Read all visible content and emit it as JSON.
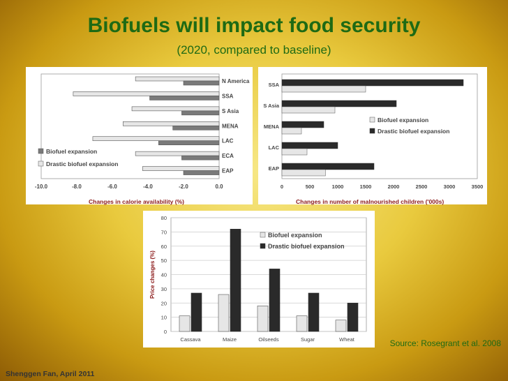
{
  "slide": {
    "title": "Biofuels will impact food security",
    "subtitle": "(2020, compared to baseline)",
    "source": "Source: Rosegrant  et al. 2008",
    "footer": "Shenggen Fan, April 2011"
  },
  "colors": {
    "title": "#1e6a14",
    "chart_title": "#8b1a1a",
    "light_bar": "#e6e6e6",
    "mid_bar": "#7a7a7a",
    "dark_bar": "#2a2a2a"
  },
  "chart_data": [
    {
      "type": "bar",
      "orientation": "horizontal",
      "title": "Changes in calorie availability (%)",
      "categories": [
        "N America",
        "SSA",
        "S Asia",
        "MENA",
        "LAC",
        "ECA",
        "EAP"
      ],
      "series": [
        {
          "name": "Biofuel expansion",
          "values": [
            -2.0,
            -3.9,
            -2.1,
            -2.6,
            -3.4,
            -2.1,
            -2.0
          ]
        },
        {
          "name": "Drastic biofuel expansion",
          "values": [
            -4.7,
            -8.2,
            -4.9,
            -5.4,
            -7.1,
            -4.7,
            -4.3
          ]
        }
      ],
      "xlim": [
        -10.0,
        0.0
      ],
      "xticks": [
        "-10.0",
        "-8.0",
        "-6.0",
        "-4.0",
        "-2.0",
        "0.0"
      ],
      "legend": "bottom-left"
    },
    {
      "type": "bar",
      "orientation": "horizontal",
      "title": "Changes in number of malnourished children ('000s)",
      "categories": [
        "SSA",
        "S Asia",
        "MENA",
        "LAC",
        "EAP"
      ],
      "series": [
        {
          "name": "Biofuel expansion",
          "values": [
            1500,
            950,
            350,
            450,
            780
          ]
        },
        {
          "name": "Drastic biofuel expansion",
          "values": [
            3250,
            2050,
            750,
            1000,
            1650
          ]
        }
      ],
      "xlim": [
        0,
        3500
      ],
      "xticks": [
        "0",
        "500",
        "1000",
        "1500",
        "2000",
        "2500",
        "3000",
        "3500"
      ],
      "legend": "right"
    },
    {
      "type": "bar",
      "title": "",
      "ylabel": "Price changes (%)",
      "categories": [
        "Cassava",
        "Maize",
        "Oilseeds",
        "Sugar",
        "Wheat"
      ],
      "series": [
        {
          "name": "Biofuel expansion",
          "values": [
            11,
            26,
            18,
            11,
            8
          ]
        },
        {
          "name": "Drastic biofuel expansion",
          "values": [
            27,
            72,
            44,
            27,
            20
          ]
        }
      ],
      "ylim": [
        0,
        80
      ],
      "yticks": [
        "0",
        "10",
        "20",
        "30",
        "40",
        "50",
        "60",
        "70",
        "80"
      ],
      "legend": "top-right"
    }
  ]
}
